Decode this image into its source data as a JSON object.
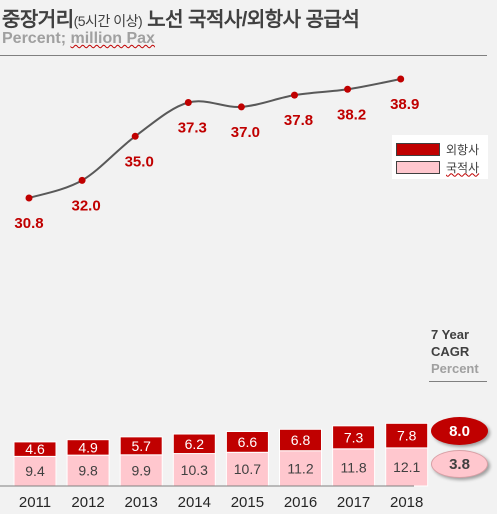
{
  "title": {
    "main": "중장거리",
    "paren": "(5시간 이상)",
    "rest": "노선 국적사/외항사 공급석"
  },
  "subtitle": {
    "prefix": "Percent; ",
    "unit": "million Pax"
  },
  "legend": {
    "items": [
      {
        "label": "외항사",
        "color": "#c00000"
      },
      {
        "label": "국적사",
        "color": "#ffc7ce"
      }
    ]
  },
  "cagr": {
    "title_line1": "7 Year",
    "title_line2": "CAGR",
    "unit": "Percent",
    "foreign": "8.0",
    "domestic": "3.8"
  },
  "chart_data": [
    {
      "type": "line",
      "x": [
        "2011",
        "2012",
        "2013",
        "2014",
        "2015",
        "2016",
        "2017",
        "2018"
      ],
      "series": [
        {
          "values": [
            30.8,
            32.0,
            35.0,
            37.3,
            37.0,
            37.8,
            38.2,
            38.9
          ],
          "color": "#c00000"
        }
      ],
      "value_labels": [
        "30.8",
        "32.0",
        "35.0",
        "37.3",
        "37.0",
        "37.8",
        "38.2",
        "38.9"
      ],
      "line_color": "#595959"
    },
    {
      "type": "bar",
      "stacked": true,
      "categories": [
        "2011",
        "2012",
        "2013",
        "2014",
        "2015",
        "2016",
        "2017",
        "2018"
      ],
      "series": [
        {
          "name": "국적사",
          "values": [
            9.4,
            9.8,
            9.9,
            10.3,
            10.7,
            11.2,
            11.8,
            12.1
          ],
          "labels": [
            "9.4",
            "9.8",
            "9.9",
            "10.3",
            "10.7",
            "11.2",
            "11.8",
            "12.1"
          ],
          "color": "#ffc7ce"
        },
        {
          "name": "외항사",
          "values": [
            4.6,
            4.9,
            5.7,
            6.2,
            6.6,
            6.8,
            7.3,
            7.8
          ],
          "labels": [
            "4.6",
            "4.9",
            "5.7",
            "6.2",
            "6.6",
            "6.8",
            "7.3",
            "7.8"
          ],
          "color": "#c00000"
        }
      ]
    }
  ]
}
